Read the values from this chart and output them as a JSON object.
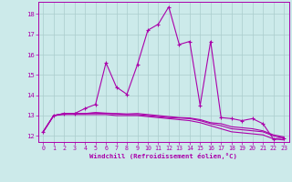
{
  "xlabel": "Windchill (Refroidissement éolien,°C)",
  "background_color": "#cceaea",
  "grid_color": "#aacccc",
  "line_color": "#aa00aa",
  "ylim": [
    11.7,
    18.6
  ],
  "xlim": [
    -0.5,
    23.5
  ],
  "yticks": [
    12,
    13,
    14,
    15,
    16,
    17,
    18
  ],
  "xticks": [
    0,
    1,
    2,
    3,
    4,
    5,
    6,
    7,
    8,
    9,
    10,
    11,
    12,
    13,
    14,
    15,
    16,
    17,
    18,
    19,
    20,
    21,
    22,
    23
  ],
  "series1_x": [
    0,
    1,
    2,
    3,
    4,
    5,
    6,
    7,
    8,
    9,
    10,
    11,
    12,
    13,
    14,
    15,
    16,
    17,
    18,
    19,
    20,
    21,
    22,
    23
  ],
  "series1_y": [
    12.2,
    13.0,
    13.1,
    13.1,
    13.35,
    13.55,
    15.6,
    14.4,
    14.05,
    15.5,
    17.2,
    17.5,
    18.35,
    16.5,
    16.65,
    13.5,
    16.65,
    12.9,
    12.85,
    12.75,
    12.85,
    12.6,
    11.85,
    11.9
  ],
  "series2_x": [
    0,
    1,
    2,
    3,
    4,
    5,
    6,
    7,
    8,
    9,
    10,
    11,
    12,
    13,
    14,
    15,
    16,
    17,
    18,
    19,
    20,
    21,
    22,
    23
  ],
  "series2_y": [
    12.2,
    13.0,
    13.05,
    13.05,
    13.05,
    13.05,
    13.05,
    13.0,
    13.0,
    13.0,
    12.95,
    12.9,
    12.85,
    12.8,
    12.75,
    12.65,
    12.5,
    12.35,
    12.2,
    12.15,
    12.1,
    12.05,
    11.85,
    11.8
  ],
  "series3_x": [
    0,
    1,
    2,
    3,
    4,
    5,
    6,
    7,
    8,
    9,
    10,
    11,
    12,
    13,
    14,
    15,
    16,
    17,
    18,
    19,
    20,
    21,
    22,
    23
  ],
  "series3_y": [
    12.2,
    13.0,
    13.1,
    13.1,
    13.1,
    13.12,
    13.1,
    13.08,
    13.05,
    13.05,
    13.0,
    12.95,
    12.9,
    12.88,
    12.85,
    12.75,
    12.6,
    12.5,
    12.35,
    12.3,
    12.25,
    12.2,
    12.0,
    11.9
  ],
  "series4_x": [
    0,
    1,
    2,
    3,
    4,
    5,
    6,
    7,
    8,
    9,
    10,
    11,
    12,
    13,
    14,
    15,
    16,
    17,
    18,
    19,
    20,
    21,
    22,
    23
  ],
  "series4_y": [
    12.2,
    13.0,
    13.1,
    13.1,
    13.1,
    13.15,
    13.12,
    13.1,
    13.08,
    13.1,
    13.05,
    13.0,
    12.95,
    12.9,
    12.88,
    12.8,
    12.65,
    12.6,
    12.45,
    12.4,
    12.35,
    12.25,
    12.05,
    11.95
  ]
}
